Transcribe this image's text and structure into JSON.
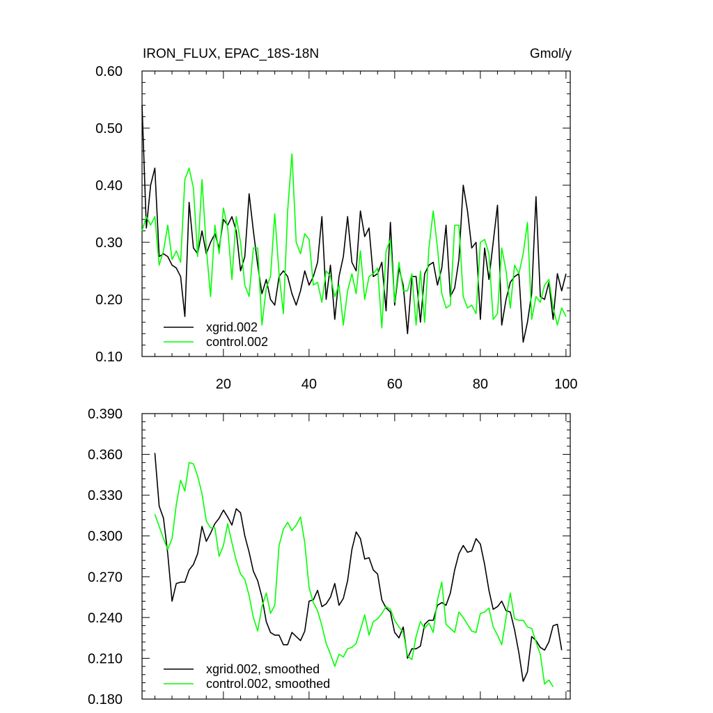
{
  "chart_data": [
    {
      "type": "line",
      "title": "IRON_FLUX, EPAC_18S-18N",
      "units": "Gmol/y",
      "xlim": [
        1,
        101
      ],
      "ylim": [
        0.1,
        0.6
      ],
      "xtick_labels": [
        "20",
        "40",
        "60",
        "80",
        "100"
      ],
      "ytick_labels": [
        "0.10",
        "0.20",
        "0.30",
        "0.40",
        "0.50",
        "0.60"
      ],
      "legend_placement": "bottom-left",
      "series": [
        {
          "name": "xgrid.002",
          "color": "#000000",
          "x_start": 1,
          "values": [
            0.54,
            0.325,
            0.4,
            0.43,
            0.275,
            0.28,
            0.275,
            0.26,
            0.255,
            0.24,
            0.17,
            0.37,
            0.29,
            0.28,
            0.32,
            0.28,
            0.3,
            0.315,
            0.29,
            0.34,
            0.33,
            0.345,
            0.32,
            0.25,
            0.275,
            0.385,
            0.32,
            0.26,
            0.21,
            0.235,
            0.2,
            0.19,
            0.24,
            0.25,
            0.24,
            0.21,
            0.19,
            0.215,
            0.25,
            0.225,
            0.24,
            0.265,
            0.345,
            0.2,
            0.26,
            0.165,
            0.24,
            0.275,
            0.345,
            0.265,
            0.25,
            0.355,
            0.31,
            0.325,
            0.24,
            0.245,
            0.265,
            0.18,
            0.335,
            0.19,
            0.255,
            0.225,
            0.14,
            0.24,
            0.24,
            0.16,
            0.245,
            0.26,
            0.265,
            0.225,
            0.255,
            0.33,
            0.205,
            0.22,
            0.27,
            0.4,
            0.355,
            0.29,
            0.3,
            0.165,
            0.29,
            0.235,
            0.3,
            0.365,
            0.155,
            0.2,
            0.23,
            0.24,
            0.245,
            0.125,
            0.16,
            0.21,
            0.38,
            0.205,
            0.2,
            0.23,
            0.165,
            0.245,
            0.215,
            0.245
          ]
        },
        {
          "name": "control.002",
          "color": "#00ff00",
          "x_start": 1,
          "values": [
            0.32,
            0.345,
            0.33,
            0.345,
            0.26,
            0.285,
            0.33,
            0.27,
            0.285,
            0.265,
            0.41,
            0.43,
            0.395,
            0.275,
            0.41,
            0.29,
            0.205,
            0.33,
            0.28,
            0.36,
            0.325,
            0.235,
            0.345,
            0.3,
            0.225,
            0.205,
            0.29,
            0.29,
            0.155,
            0.22,
            0.24,
            0.35,
            0.245,
            0.175,
            0.355,
            0.455,
            0.3,
            0.28,
            0.315,
            0.305,
            0.225,
            0.23,
            0.195,
            0.25,
            0.24,
            0.205,
            0.225,
            0.155,
            0.215,
            0.245,
            0.21,
            0.285,
            0.2,
            0.24,
            0.245,
            0.255,
            0.15,
            0.285,
            0.305,
            0.195,
            0.265,
            0.215,
            0.215,
            0.245,
            0.155,
            0.25,
            0.16,
            0.29,
            0.355,
            0.29,
            0.21,
            0.185,
            0.19,
            0.33,
            0.33,
            0.205,
            0.185,
            0.19,
            0.175,
            0.3,
            0.305,
            0.28,
            0.165,
            0.175,
            0.29,
            0.25,
            0.185,
            0.26,
            0.245,
            0.28,
            0.335,
            0.165,
            0.205,
            0.195,
            0.225,
            0.235,
            0.185,
            0.155,
            0.185,
            0.17
          ]
        }
      ]
    },
    {
      "type": "line",
      "xlim": [
        1,
        101
      ],
      "ylim": [
        0.18,
        0.39
      ],
      "ytick_labels": [
        "0.180",
        "0.210",
        "0.240",
        "0.270",
        "0.300",
        "0.330",
        "0.360",
        "0.390"
      ],
      "legend_placement": "bottom-left",
      "series": [
        {
          "name": "xgrid.002, smoothed",
          "color": "#000000",
          "x_start": 4,
          "values": [
            0.361,
            0.322,
            0.313,
            0.287,
            0.252,
            0.265,
            0.266,
            0.266,
            0.275,
            0.279,
            0.287,
            0.307,
            0.296,
            0.302,
            0.309,
            0.313,
            0.319,
            0.314,
            0.308,
            0.32,
            0.317,
            0.3,
            0.288,
            0.274,
            0.267,
            0.255,
            0.237,
            0.229,
            0.227,
            0.227,
            0.22,
            0.22,
            0.229,
            0.226,
            0.223,
            0.23,
            0.252,
            0.253,
            0.26,
            0.248,
            0.25,
            0.255,
            0.265,
            0.249,
            0.254,
            0.267,
            0.29,
            0.303,
            0.298,
            0.283,
            0.284,
            0.275,
            0.272,
            0.253,
            0.247,
            0.244,
            0.229,
            0.225,
            0.233,
            0.21,
            0.217,
            0.217,
            0.219,
            0.235,
            0.238,
            0.238,
            0.249,
            0.251,
            0.249,
            0.258,
            0.275,
            0.287,
            0.293,
            0.288,
            0.289,
            0.298,
            0.294,
            0.279,
            0.26,
            0.246,
            0.248,
            0.252,
            0.245,
            0.244,
            0.231,
            0.214,
            0.193,
            0.2,
            0.226,
            0.223,
            0.218,
            0.216,
            0.222,
            0.234,
            0.235,
            0.216
          ]
        },
        {
          "name": "control.002, smoothed",
          "color": "#00ff00",
          "x_start": 4,
          "values": [
            0.316,
            0.307,
            0.298,
            0.29,
            0.298,
            0.323,
            0.341,
            0.333,
            0.354,
            0.353,
            0.344,
            0.331,
            0.311,
            0.306,
            0.306,
            0.285,
            0.293,
            0.309,
            0.295,
            0.282,
            0.272,
            0.268,
            0.256,
            0.24,
            0.23,
            0.248,
            0.258,
            0.243,
            0.249,
            0.293,
            0.305,
            0.31,
            0.304,
            0.308,
            0.314,
            0.295,
            0.262,
            0.251,
            0.245,
            0.234,
            0.221,
            0.213,
            0.204,
            0.213,
            0.211,
            0.217,
            0.218,
            0.221,
            0.231,
            0.242,
            0.227,
            0.237,
            0.239,
            0.243,
            0.248,
            0.246,
            0.238,
            0.233,
            0.229,
            0.212,
            0.209,
            0.226,
            0.237,
            0.232,
            0.236,
            0.229,
            0.253,
            0.266,
            0.235,
            0.232,
            0.229,
            0.244,
            0.24,
            0.235,
            0.23,
            0.229,
            0.243,
            0.244,
            0.247,
            0.233,
            0.227,
            0.22,
            0.24,
            0.258,
            0.239,
            0.238,
            0.238,
            0.233,
            0.232,
            0.222,
            0.213,
            0.191,
            0.194,
            0.189
          ]
        }
      ]
    }
  ]
}
